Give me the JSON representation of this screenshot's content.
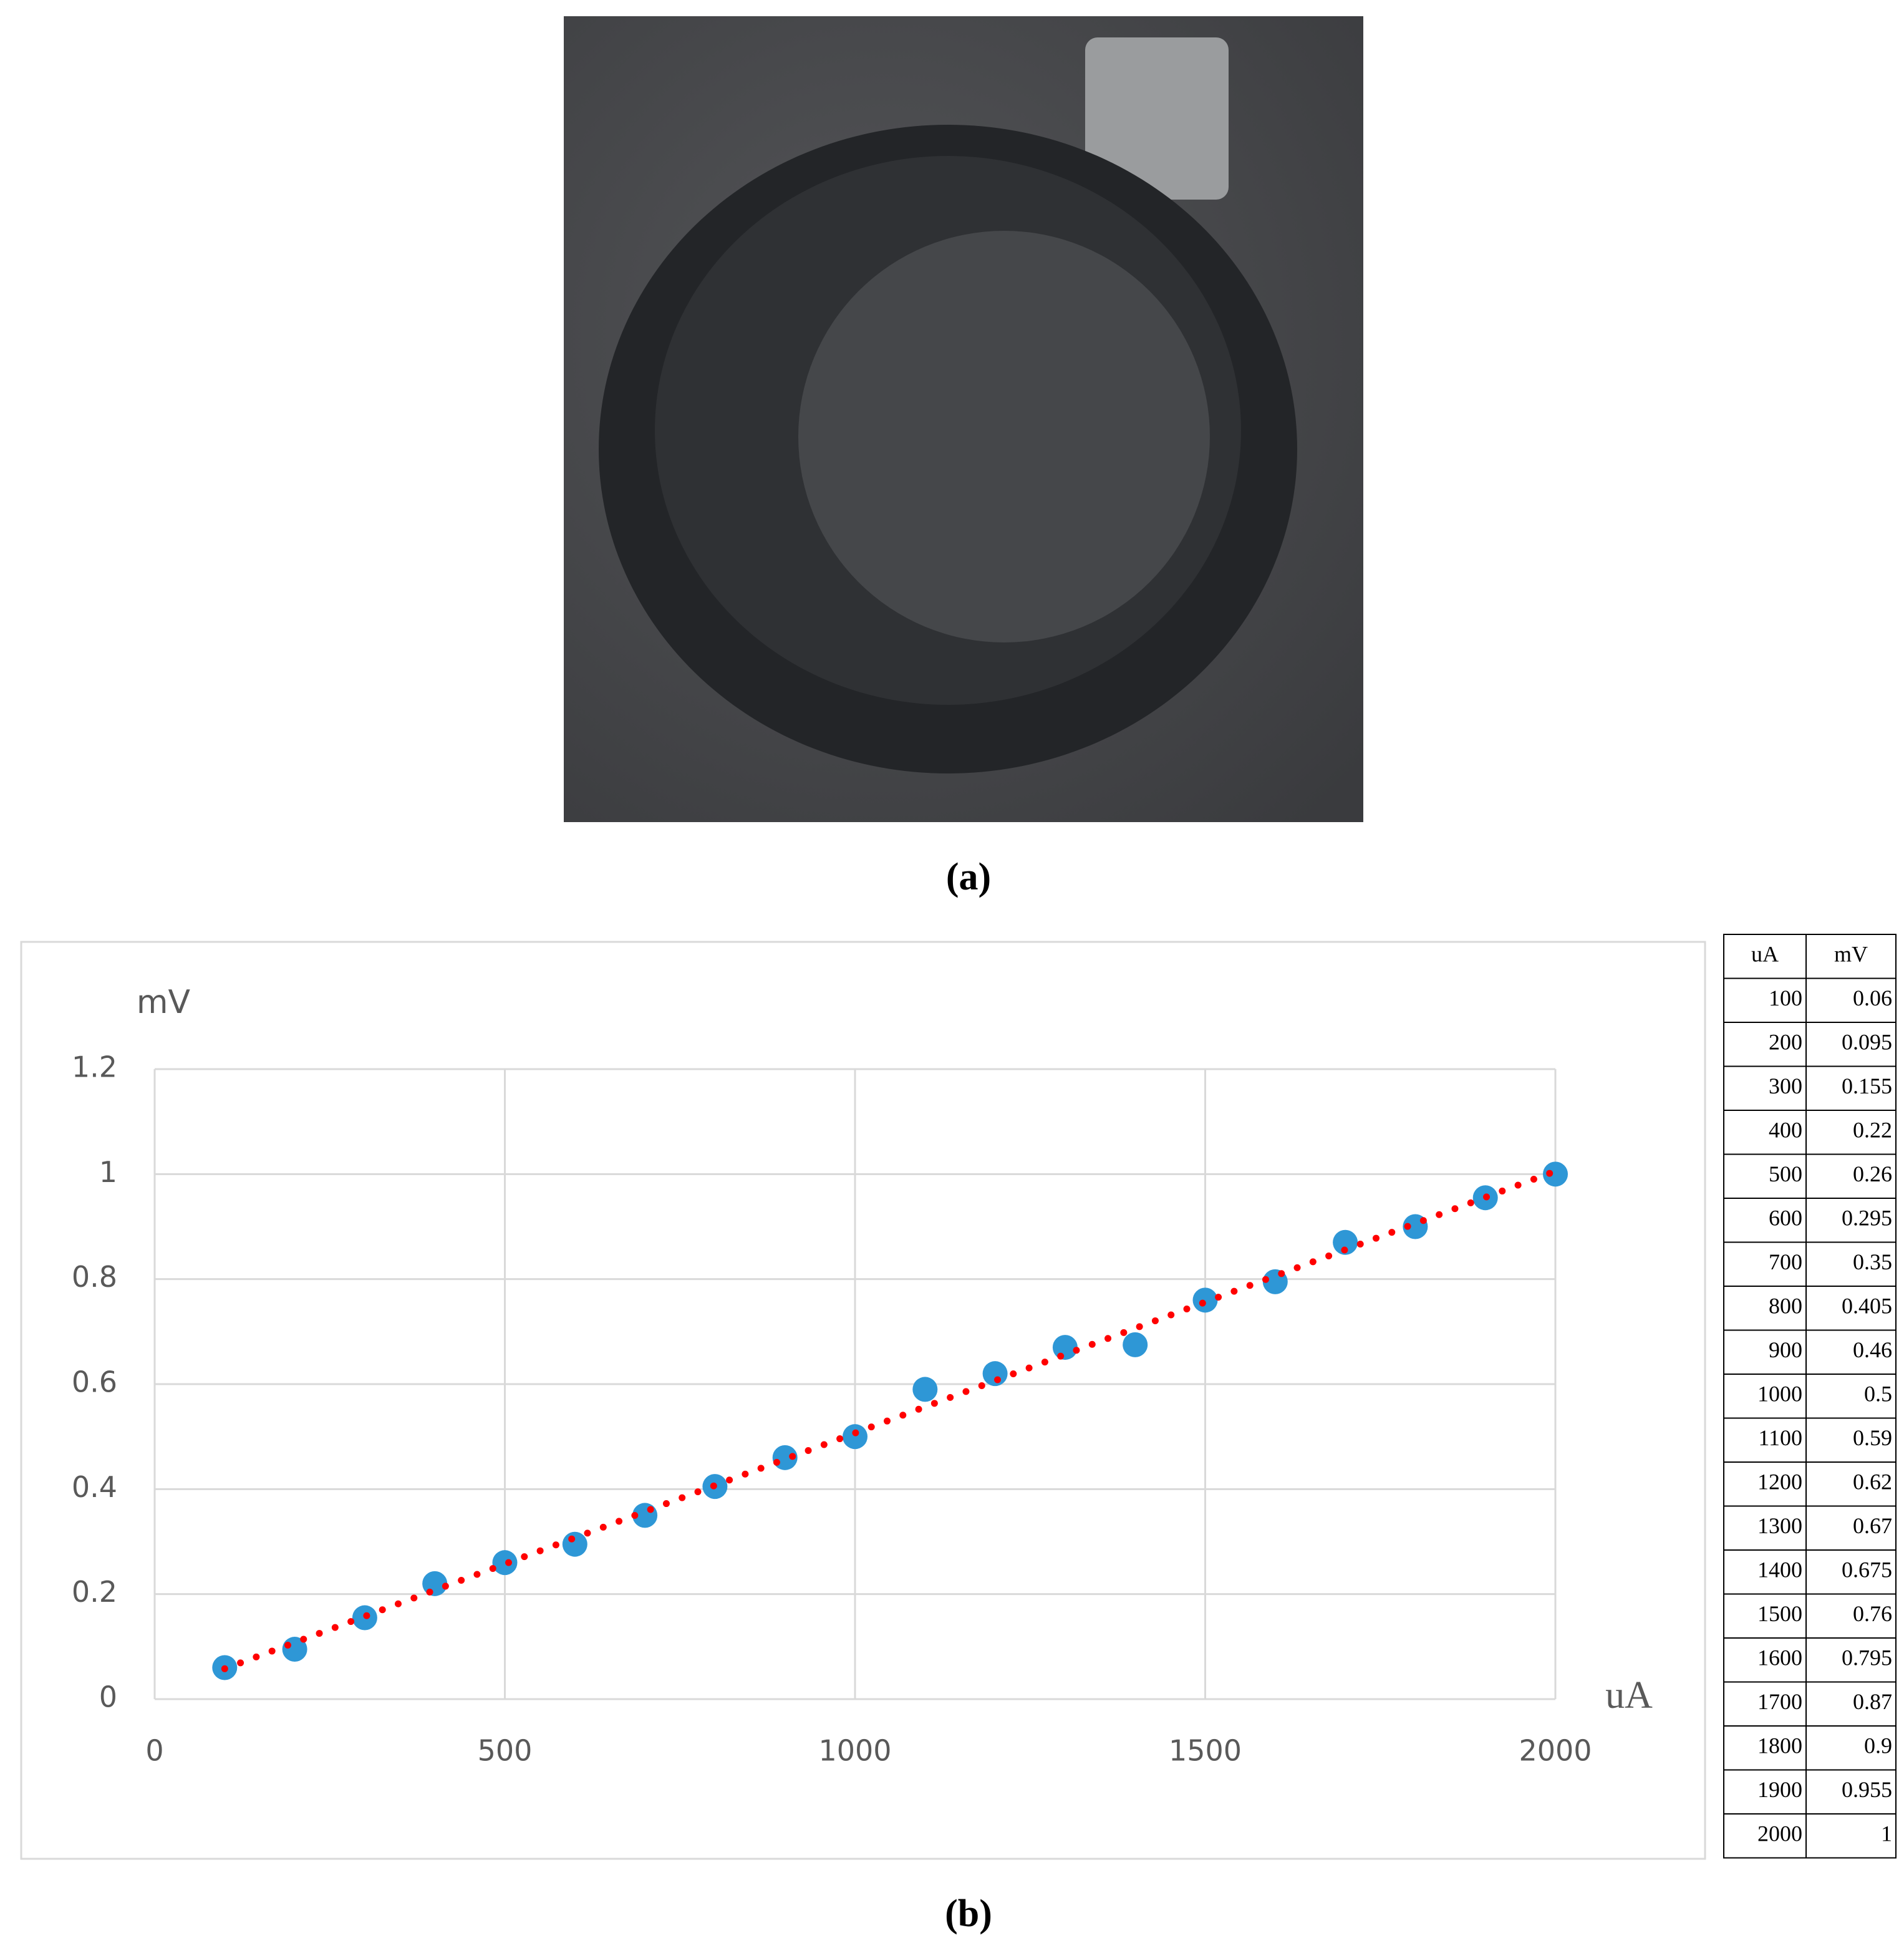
{
  "figure_a": {
    "caption": "(a)"
  },
  "chart_data": {
    "type": "scatter",
    "x_label": "uA",
    "y_label": "mV",
    "x": [
      100,
      200,
      300,
      400,
      500,
      600,
      700,
      800,
      900,
      1000,
      1100,
      1200,
      1300,
      1400,
      1500,
      1600,
      1700,
      1800,
      1900,
      2000
    ],
    "series": [
      {
        "color": "#2e97d6",
        "values": [
          0.06,
          0.095,
          0.155,
          0.22,
          0.26,
          0.295,
          0.35,
          0.405,
          0.46,
          0.5,
          0.59,
          0.62,
          0.67,
          0.675,
          0.76,
          0.795,
          0.87,
          0.9,
          0.955,
          1
        ]
      }
    ],
    "trendline": "linear",
    "trendline_color": "#ff0000",
    "xlim": [
      0,
      2000
    ],
    "xticks": [
      0,
      500,
      1000,
      1500,
      2000
    ],
    "ylim": [
      0,
      1.2
    ],
    "yticks": [
      0,
      0.2,
      0.4,
      0.6,
      0.8,
      1,
      1.2
    ],
    "grid": true
  },
  "table": {
    "header": [
      "uA",
      "mV"
    ],
    "rows": [
      [
        100,
        0.06
      ],
      [
        200,
        0.095
      ],
      [
        300,
        0.155
      ],
      [
        400,
        0.22
      ],
      [
        500,
        0.26
      ],
      [
        600,
        0.295
      ],
      [
        700,
        0.35
      ],
      [
        800,
        0.405
      ],
      [
        900,
        0.46
      ],
      [
        1000,
        0.5
      ],
      [
        1100,
        0.59
      ],
      [
        1200,
        0.62
      ],
      [
        1300,
        0.67
      ],
      [
        1400,
        0.675
      ],
      [
        1500,
        0.76
      ],
      [
        1600,
        0.795
      ],
      [
        1700,
        0.87
      ],
      [
        1800,
        0.9
      ],
      [
        1900,
        0.955
      ],
      [
        2000,
        1
      ]
    ]
  },
  "figure_b": {
    "caption": "(b)"
  }
}
